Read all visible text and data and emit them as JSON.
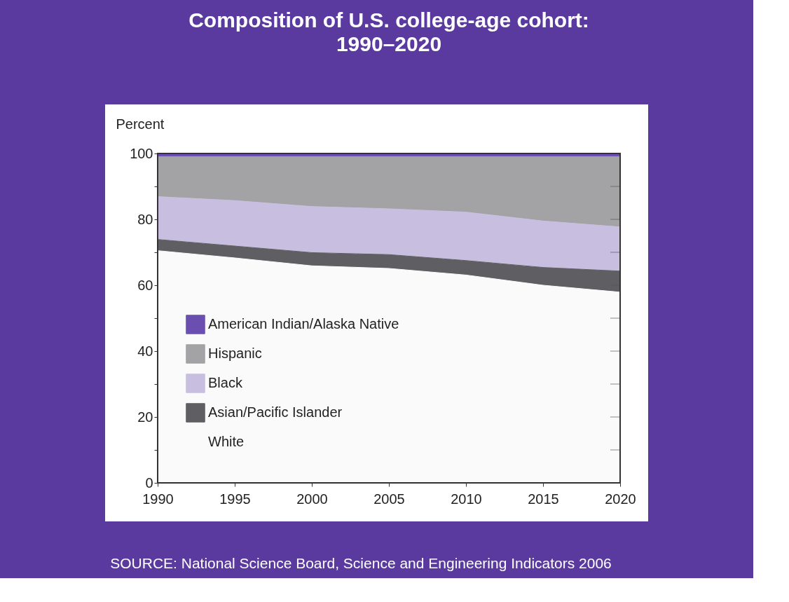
{
  "chart_data": {
    "type": "area",
    "stacked": true,
    "title": "Composition of U.S. college-age cohort: 1990–2020",
    "ylabel": "Percent",
    "x": [
      1990,
      1995,
      2000,
      2005,
      2010,
      2015,
      2020
    ],
    "series": [
      {
        "name": "White",
        "color": "#fafafa",
        "values": [
          70.5,
          68.3,
          65.9,
          65.1,
          63.1,
          60.0,
          57.9
        ]
      },
      {
        "name": "Asian/Pacific Islander",
        "color": "#5f5f63",
        "values": [
          3.4,
          3.6,
          4.0,
          4.2,
          4.4,
          5.4,
          6.4
        ]
      },
      {
        "name": "Black",
        "color": "#c8bfe0",
        "values": [
          13.0,
          13.8,
          14.0,
          13.9,
          14.7,
          14.1,
          13.4
        ]
      },
      {
        "name": "Hispanic",
        "color": "#a3a3a6",
        "values": [
          12.1,
          13.3,
          15.1,
          15.8,
          16.8,
          19.5,
          21.3
        ]
      },
      {
        "name": "American Indian/Alaska Native",
        "color": "#6a4fb0",
        "values": [
          1.0,
          1.0,
          1.0,
          1.0,
          1.0,
          1.0,
          1.0
        ]
      }
    ],
    "xlim": [
      1990,
      2020
    ],
    "xticks": [
      1990,
      1995,
      2000,
      2005,
      2010,
      2015,
      2020
    ],
    "ylim": [
      0,
      100
    ],
    "yticks": [
      0,
      {
        "value": 10,
        "label": null
      },
      20,
      {
        "value": 30,
        "label": null
      },
      40,
      {
        "value": 50,
        "label": null
      },
      60,
      {
        "value": 70,
        "label": null
      },
      80,
      {
        "value": 90,
        "label": null
      },
      100
    ],
    "grid": false,
    "legend": "bottom left",
    "annotations": [
      "SOURCE: National Science Board, Science and Engineering Indicators 2006"
    ]
  }
}
